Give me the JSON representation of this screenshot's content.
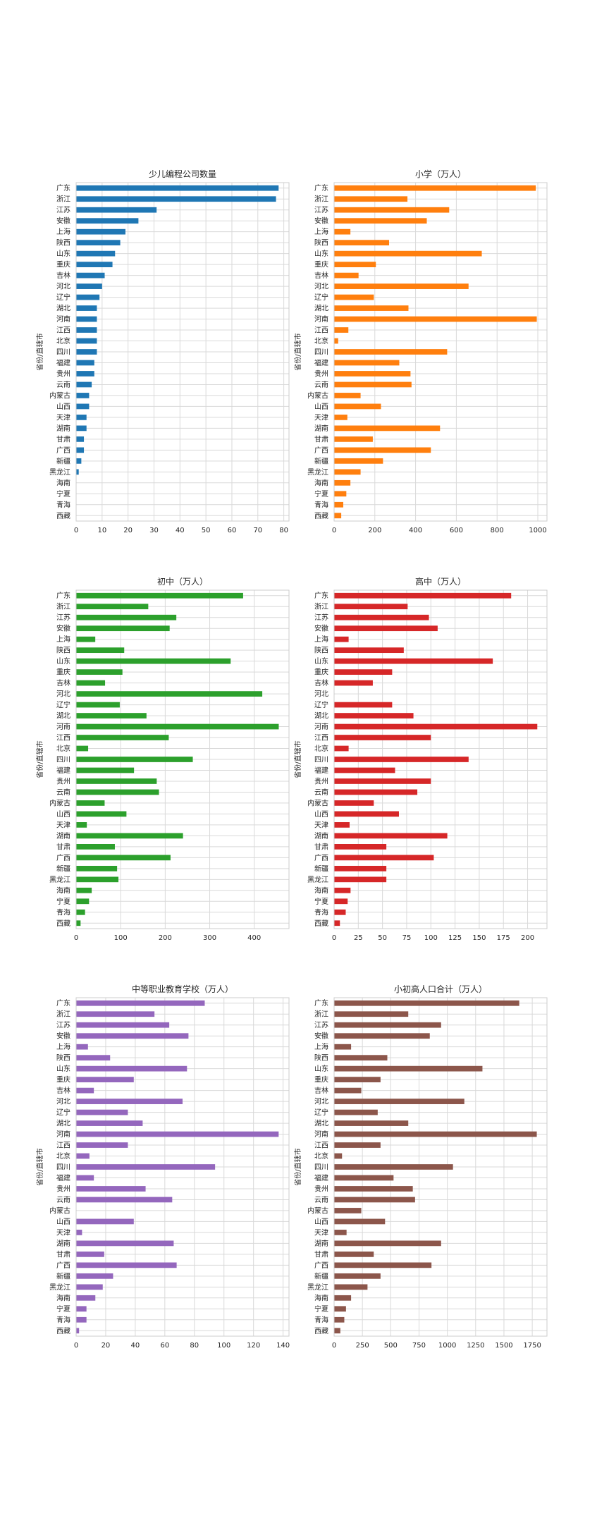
{
  "chart_data": [
    {
      "type": "bar",
      "orientation": "horizontal",
      "title": "少儿编程公司数量",
      "ylabel": "省份/直辖市",
      "color": "#1f77b4",
      "categories": [
        "广东",
        "浙江",
        "江苏",
        "安徽",
        "上海",
        "陕西",
        "山东",
        "重庆",
        "吉林",
        "河北",
        "辽宁",
        "湖北",
        "河南",
        "江西",
        "北京",
        "四川",
        "福建",
        "贵州",
        "云南",
        "内蒙古",
        "山西",
        "天津",
        "湖南",
        "甘肃",
        "广西",
        "新疆",
        "黑龙江",
        "海南",
        "宁夏",
        "青海",
        "西藏"
      ],
      "values": [
        78,
        77,
        31,
        24,
        19,
        17,
        15,
        14,
        11,
        10,
        9,
        8,
        8,
        8,
        8,
        8,
        7,
        7,
        6,
        5,
        5,
        4,
        4,
        3,
        3,
        2,
        1,
        0,
        0,
        0,
        0
      ],
      "xlim": [
        0,
        82
      ],
      "xticks": [
        0,
        10,
        20,
        30,
        40,
        50,
        60,
        70,
        80
      ],
      "grid": true
    },
    {
      "type": "bar",
      "orientation": "horizontal",
      "title": "小学（万人）",
      "ylabel": "省份/直辖市",
      "color": "#ff7f0e",
      "categories": [
        "广东",
        "浙江",
        "江苏",
        "安徽",
        "上海",
        "陕西",
        "山东",
        "重庆",
        "吉林",
        "河北",
        "辽宁",
        "湖北",
        "河南",
        "江西",
        "北京",
        "四川",
        "福建",
        "贵州",
        "云南",
        "内蒙古",
        "山西",
        "天津",
        "湖南",
        "甘肃",
        "广西",
        "新疆",
        "黑龙江",
        "海南",
        "宁夏",
        "青海",
        "西藏"
      ],
      "values": [
        990,
        360,
        565,
        455,
        80,
        270,
        725,
        205,
        120,
        660,
        195,
        365,
        995,
        70,
        20,
        555,
        320,
        375,
        380,
        130,
        230,
        65,
        520,
        190,
        475,
        240,
        130,
        80,
        60,
        45,
        35
      ],
      "xlim": [
        0,
        1045
      ],
      "xticks": [
        0,
        200,
        400,
        600,
        800,
        1000
      ],
      "grid": true
    },
    {
      "type": "bar",
      "orientation": "horizontal",
      "title": "初中（万人）",
      "ylabel": "省份/直辖市",
      "color": "#2ca02c",
      "categories": [
        "广东",
        "浙江",
        "江苏",
        "安徽",
        "上海",
        "陕西",
        "山东",
        "重庆",
        "吉林",
        "河北",
        "辽宁",
        "湖北",
        "河南",
        "江西",
        "北京",
        "四川",
        "福建",
        "贵州",
        "云南",
        "内蒙古",
        "山西",
        "天津",
        "湖南",
        "甘肃",
        "广西",
        "新疆",
        "黑龙江",
        "海南",
        "宁夏",
        "青海",
        "西藏"
      ],
      "values": [
        375,
        162,
        225,
        210,
        43,
        108,
        347,
        104,
        65,
        418,
        98,
        158,
        455,
        208,
        27,
        262,
        130,
        181,
        186,
        64,
        113,
        24,
        240,
        87,
        212,
        92,
        95,
        35,
        29,
        20,
        10
      ],
      "xlim": [
        0,
        478
      ],
      "xticks": [
        0,
        100,
        200,
        300,
        400
      ],
      "grid": true
    },
    {
      "type": "bar",
      "orientation": "horizontal",
      "title": "高中（万人）",
      "ylabel": "省份/直辖市",
      "color": "#d62728",
      "categories": [
        "广东",
        "浙江",
        "江苏",
        "安徽",
        "上海",
        "陕西",
        "山东",
        "重庆",
        "吉林",
        "河北",
        "辽宁",
        "湖北",
        "河南",
        "江西",
        "北京",
        "四川",
        "福建",
        "贵州",
        "云南",
        "内蒙古",
        "山西",
        "天津",
        "湖南",
        "甘肃",
        "广西",
        "新疆",
        "黑龙江",
        "海南",
        "宁夏",
        "青海",
        "西藏"
      ],
      "values": [
        183,
        76,
        98,
        107,
        15,
        72,
        164,
        60,
        40,
        0,
        60,
        82,
        210,
        100,
        15,
        139,
        63,
        100,
        86,
        41,
        67,
        16,
        117,
        54,
        103,
        54,
        54,
        17,
        14,
        12,
        6
      ],
      "xlim": [
        0,
        220
      ],
      "xticks": [
        0,
        25,
        50,
        75,
        100,
        125,
        150,
        175,
        200
      ],
      "grid": true
    },
    {
      "type": "bar",
      "orientation": "horizontal",
      "title": "中等职业教育学校（万人）",
      "ylabel": "省份/直辖市",
      "color": "#9467bd",
      "categories": [
        "广东",
        "浙江",
        "江苏",
        "安徽",
        "上海",
        "陕西",
        "山东",
        "重庆",
        "吉林",
        "河北",
        "辽宁",
        "湖北",
        "河南",
        "江西",
        "北京",
        "四川",
        "福建",
        "贵州",
        "云南",
        "内蒙古",
        "山西",
        "天津",
        "湖南",
        "甘肃",
        "广西",
        "新疆",
        "黑龙江",
        "海南",
        "宁夏",
        "青海",
        "西藏"
      ],
      "values": [
        87,
        53,
        63,
        76,
        8,
        23,
        75,
        39,
        12,
        72,
        35,
        45,
        137,
        35,
        9,
        94,
        12,
        47,
        65,
        0,
        39,
        4,
        66,
        19,
        68,
        25,
        18,
        13,
        7,
        7,
        2
      ],
      "xlim": [
        0,
        144
      ],
      "xticks": [
        0,
        20,
        40,
        60,
        80,
        100,
        120,
        140
      ],
      "grid": true
    },
    {
      "type": "bar",
      "orientation": "horizontal",
      "title": "小初高人口合计（万人）",
      "ylabel": "省份/直辖市",
      "color": "#8c564b",
      "categories": [
        "广东",
        "浙江",
        "江苏",
        "安徽",
        "上海",
        "陕西",
        "山东",
        "重庆",
        "吉林",
        "河北",
        "辽宁",
        "湖北",
        "河南",
        "江西",
        "北京",
        "四川",
        "福建",
        "贵州",
        "云南",
        "内蒙古",
        "山西",
        "天津",
        "湖南",
        "甘肃",
        "广西",
        "新疆",
        "黑龙江",
        "海南",
        "宁夏",
        "青海",
        "西藏"
      ],
      "values": [
        1635,
        655,
        945,
        845,
        150,
        470,
        1310,
        410,
        240,
        1150,
        385,
        655,
        1790,
        410,
        70,
        1050,
        525,
        695,
        715,
        240,
        450,
        110,
        945,
        350,
        860,
        410,
        295,
        150,
        105,
        90,
        55
      ],
      "xlim": [
        0,
        1880
      ],
      "xticks": [
        0,
        250,
        500,
        750,
        1000,
        1250,
        1500,
        1750
      ],
      "grid": true
    }
  ]
}
